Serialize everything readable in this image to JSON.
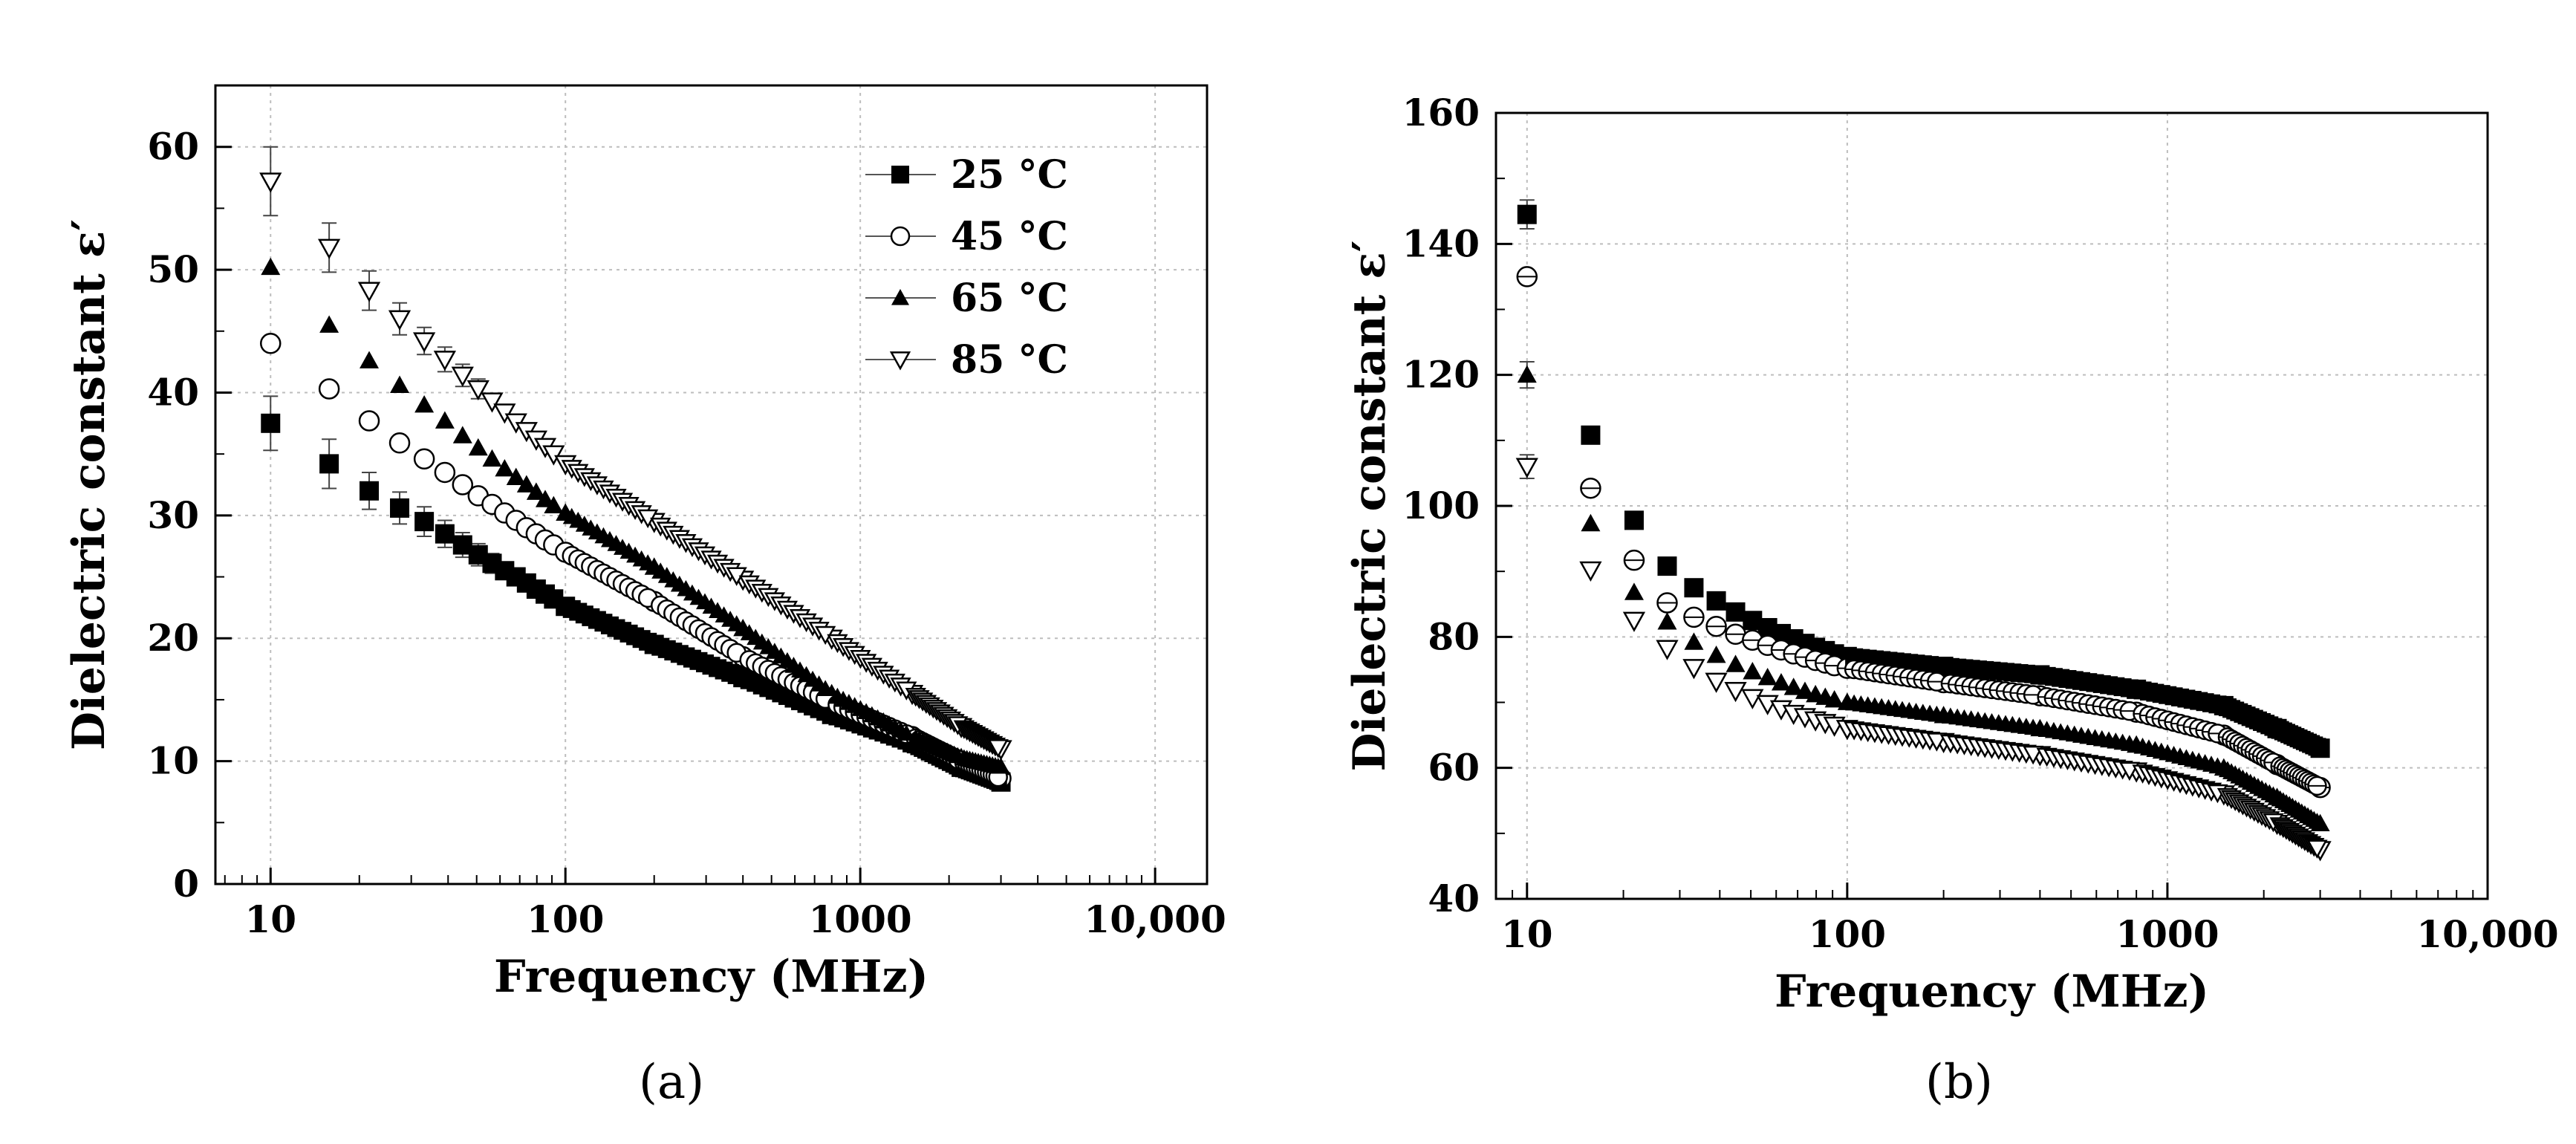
{
  "chart_data": [
    {
      "type": "scatter",
      "panel": "a",
      "caption": "(a)",
      "xlabel": "Frequency (MHz)",
      "ylabel": "Dielectric constant  ε′",
      "xscale": "log",
      "xlim": [
        6.5,
        15000
      ],
      "ylim": [
        0,
        65
      ],
      "xticks": [
        10,
        100,
        1000,
        10000
      ],
      "xticklabels": [
        "10",
        "100",
        "1000",
        "10,000"
      ],
      "yticks": [
        0,
        10,
        20,
        30,
        40,
        50,
        60
      ],
      "grid": true,
      "legend_position": "top-right",
      "series": [
        {
          "name": "25 °C",
          "marker": "square-filled",
          "x": [
            10,
            15.8,
            21.6,
            27.4,
            33.2,
            39,
            44.8,
            50.6,
            56.4,
            62.2,
            68,
            73.8,
            79.6,
            85.4,
            91.2,
            100,
            200,
            400,
            800,
            1500,
            2200,
            3000
          ],
          "y": [
            37.5,
            34.2,
            32,
            30.6,
            29.5,
            28.5,
            27.6,
            26.8,
            26.1,
            25.5,
            25,
            24.5,
            24,
            23.6,
            23.2,
            22.6,
            19.5,
            16.8,
            13.8,
            11.5,
            9.5,
            8.3
          ],
          "err": [
            2.2,
            2.0,
            1.5,
            1.3,
            1.2,
            1.1,
            1.0,
            0.9,
            0.8,
            0.7,
            0.6,
            0.5,
            0.5,
            0.5,
            0.5,
            0.4,
            0.3,
            0.3,
            0.3,
            0.3,
            0.3,
            0.3
          ]
        },
        {
          "name": "45 °C",
          "marker": "circle-open",
          "x": [
            10,
            15.8,
            21.6,
            27.4,
            33.2,
            39,
            44.8,
            50.6,
            56.4,
            62.2,
            68,
            73.8,
            79.6,
            85.4,
            91.2,
            100,
            200,
            400,
            800,
            1500,
            2200,
            3000
          ],
          "y": [
            44,
            40.3,
            37.7,
            35.9,
            34.6,
            33.5,
            32.5,
            31.6,
            30.9,
            30.2,
            29.6,
            29,
            28.5,
            28,
            27.6,
            27,
            23,
            18.5,
            14.8,
            12,
            10,
            8.6
          ],
          "err": [
            0.4,
            0.4,
            0.4,
            0.4,
            0.4,
            0.4,
            0.4,
            0.4,
            0.4,
            0.4,
            0.4,
            0.4,
            0.4,
            0.4,
            0.4,
            0.4,
            0.3,
            0.3,
            0.3,
            0.3,
            0.3,
            0.3
          ]
        },
        {
          "name": "65 °C",
          "marker": "triangle-up-filled",
          "x": [
            10,
            15.8,
            21.6,
            27.4,
            33.2,
            39,
            44.8,
            50.6,
            56.4,
            62.2,
            68,
            73.8,
            79.6,
            85.4,
            91.2,
            100,
            200,
            400,
            800,
            1500,
            2200,
            3000
          ],
          "y": [
            50.2,
            45.5,
            42.6,
            40.6,
            39,
            37.7,
            36.5,
            35.5,
            34.6,
            33.8,
            33.1,
            32.5,
            31.9,
            31.3,
            30.8,
            30.2,
            25.8,
            20.8,
            15.5,
            12,
            10.3,
            9.5
          ],
          "err": [
            0.4,
            0.4,
            0.4,
            0.4,
            0.4,
            0.4,
            0.4,
            0.4,
            0.4,
            0.4,
            0.4,
            0.4,
            0.4,
            0.4,
            0.4,
            0.4,
            0.3,
            0.3,
            0.3,
            0.3,
            0.3,
            0.3
          ]
        },
        {
          "name": "85 °C",
          "marker": "triangle-down-open",
          "x": [
            10,
            15.8,
            21.6,
            27.4,
            33.2,
            39,
            44.8,
            50.6,
            56.4,
            62.2,
            68,
            73.8,
            79.6,
            85.4,
            91.2,
            100,
            200,
            400,
            800,
            1500,
            2200,
            3000
          ],
          "y": [
            57.2,
            51.8,
            48.3,
            46,
            44.2,
            42.7,
            41.4,
            40.3,
            39.3,
            38.4,
            37.6,
            36.9,
            36.2,
            35.6,
            35,
            34.2,
            29.5,
            24.8,
            20,
            15.5,
            12.8,
            11
          ],
          "err": [
            2.8,
            2.0,
            1.6,
            1.3,
            1.1,
            1.0,
            0.9,
            0.8,
            0.7,
            0.6,
            0.5,
            0.5,
            0.5,
            0.5,
            0.5,
            0.4,
            0.3,
            0.3,
            0.3,
            0.3,
            0.3,
            0.3
          ]
        }
      ]
    },
    {
      "type": "scatter",
      "panel": "b",
      "caption": "(b)",
      "xlabel": "Frequency (MHz)",
      "ylabel": "Dielectric constant  ε′",
      "xscale": "log",
      "xlim": [
        8,
        10000
      ],
      "ylim": [
        40,
        160
      ],
      "xticks": [
        10,
        100,
        1000,
        10000
      ],
      "xticklabels": [
        "10",
        "100",
        "1000",
        "10,000"
      ],
      "yticks": [
        40,
        60,
        80,
        100,
        120,
        140,
        160
      ],
      "grid": true,
      "series": [
        {
          "name": "25 °C",
          "marker": "square-filled",
          "x": [
            10,
            15.8,
            21.6,
            27.4,
            33.2,
            39,
            44.8,
            50.6,
            56.4,
            62.2,
            68,
            73.8,
            79.6,
            85.4,
            91.2,
            100,
            200,
            400,
            800,
            1500,
            2200,
            3000
          ],
          "y": [
            144.5,
            110.8,
            97.8,
            90.8,
            87.5,
            85.5,
            83.8,
            82.5,
            81.4,
            80.5,
            79.7,
            79,
            78.4,
            77.9,
            77.4,
            77,
            75.5,
            74.2,
            72,
            69.5,
            66,
            63
          ],
          "err": [
            2.2,
            0.5,
            0.4,
            0.4,
            0.4,
            0.4,
            0.4,
            0.4,
            0.4,
            0.4,
            0.4,
            0.4,
            0.4,
            0.4,
            0.4,
            0.4,
            0.3,
            0.3,
            0.3,
            0.3,
            0.3,
            0.3
          ]
        },
        {
          "name": "45 °C",
          "marker": "circle-crossed",
          "x": [
            10,
            15.8,
            21.6,
            27.4,
            33.2,
            39,
            44.8,
            50.6,
            56.4,
            62.2,
            68,
            73.8,
            79.6,
            85.4,
            91.2,
            100,
            200,
            400,
            800,
            1500,
            2200,
            3000
          ],
          "y": [
            135,
            102.7,
            91.7,
            85.2,
            83,
            81.6,
            80.4,
            79.5,
            78.7,
            78,
            77.4,
            76.9,
            76.4,
            76,
            75.6,
            75.2,
            73,
            71,
            68.5,
            65,
            60.5,
            57
          ],
          "err": [
            0.6,
            0.5,
            0.4,
            0.4,
            0.4,
            0.4,
            0.4,
            0.4,
            0.4,
            0.4,
            0.4,
            0.4,
            0.4,
            0.4,
            0.4,
            0.4,
            0.3,
            0.3,
            0.3,
            0.3,
            0.3,
            0.3
          ]
        },
        {
          "name": "65 °C",
          "marker": "triangle-up-filled",
          "x": [
            10,
            15.8,
            21.6,
            27.4,
            33.2,
            39,
            44.8,
            50.6,
            56.4,
            62.2,
            68,
            73.8,
            79.6,
            85.4,
            91.2,
            100,
            200,
            400,
            800,
            1500,
            2200,
            3000
          ],
          "y": [
            120,
            97.3,
            86.8,
            82.3,
            79.2,
            77.2,
            75.8,
            74.7,
            73.8,
            73,
            72.3,
            71.7,
            71.2,
            70.8,
            70.4,
            70,
            68,
            66,
            63.5,
            60,
            55.5,
            51.5
          ],
          "err": [
            2.0,
            0.5,
            0.4,
            0.4,
            0.4,
            0.4,
            0.4,
            0.4,
            0.4,
            0.4,
            0.4,
            0.4,
            0.4,
            0.4,
            0.4,
            0.4,
            0.3,
            0.3,
            0.3,
            0.3,
            0.3,
            0.3
          ]
        },
        {
          "name": "85 °C",
          "marker": "triangle-down-open",
          "x": [
            10,
            15.8,
            21.6,
            27.4,
            33.2,
            39,
            44.8,
            50.6,
            56.4,
            62.2,
            68,
            73.8,
            79.6,
            85.4,
            91.2,
            100,
            200,
            400,
            800,
            1500,
            2200,
            3000
          ],
          "y": [
            106,
            90.2,
            82.5,
            78.2,
            75.3,
            73.2,
            71.8,
            70.7,
            69.8,
            69,
            68.3,
            67.8,
            67.3,
            66.9,
            66.5,
            66,
            64,
            62,
            59.5,
            56,
            51.5,
            47.5
          ],
          "err": [
            1.8,
            0.5,
            0.4,
            0.4,
            0.4,
            0.4,
            0.4,
            0.4,
            0.4,
            0.4,
            0.4,
            0.4,
            0.4,
            0.4,
            0.4,
            0.4,
            0.3,
            0.3,
            0.3,
            0.3,
            0.3,
            0.3
          ]
        }
      ]
    }
  ]
}
